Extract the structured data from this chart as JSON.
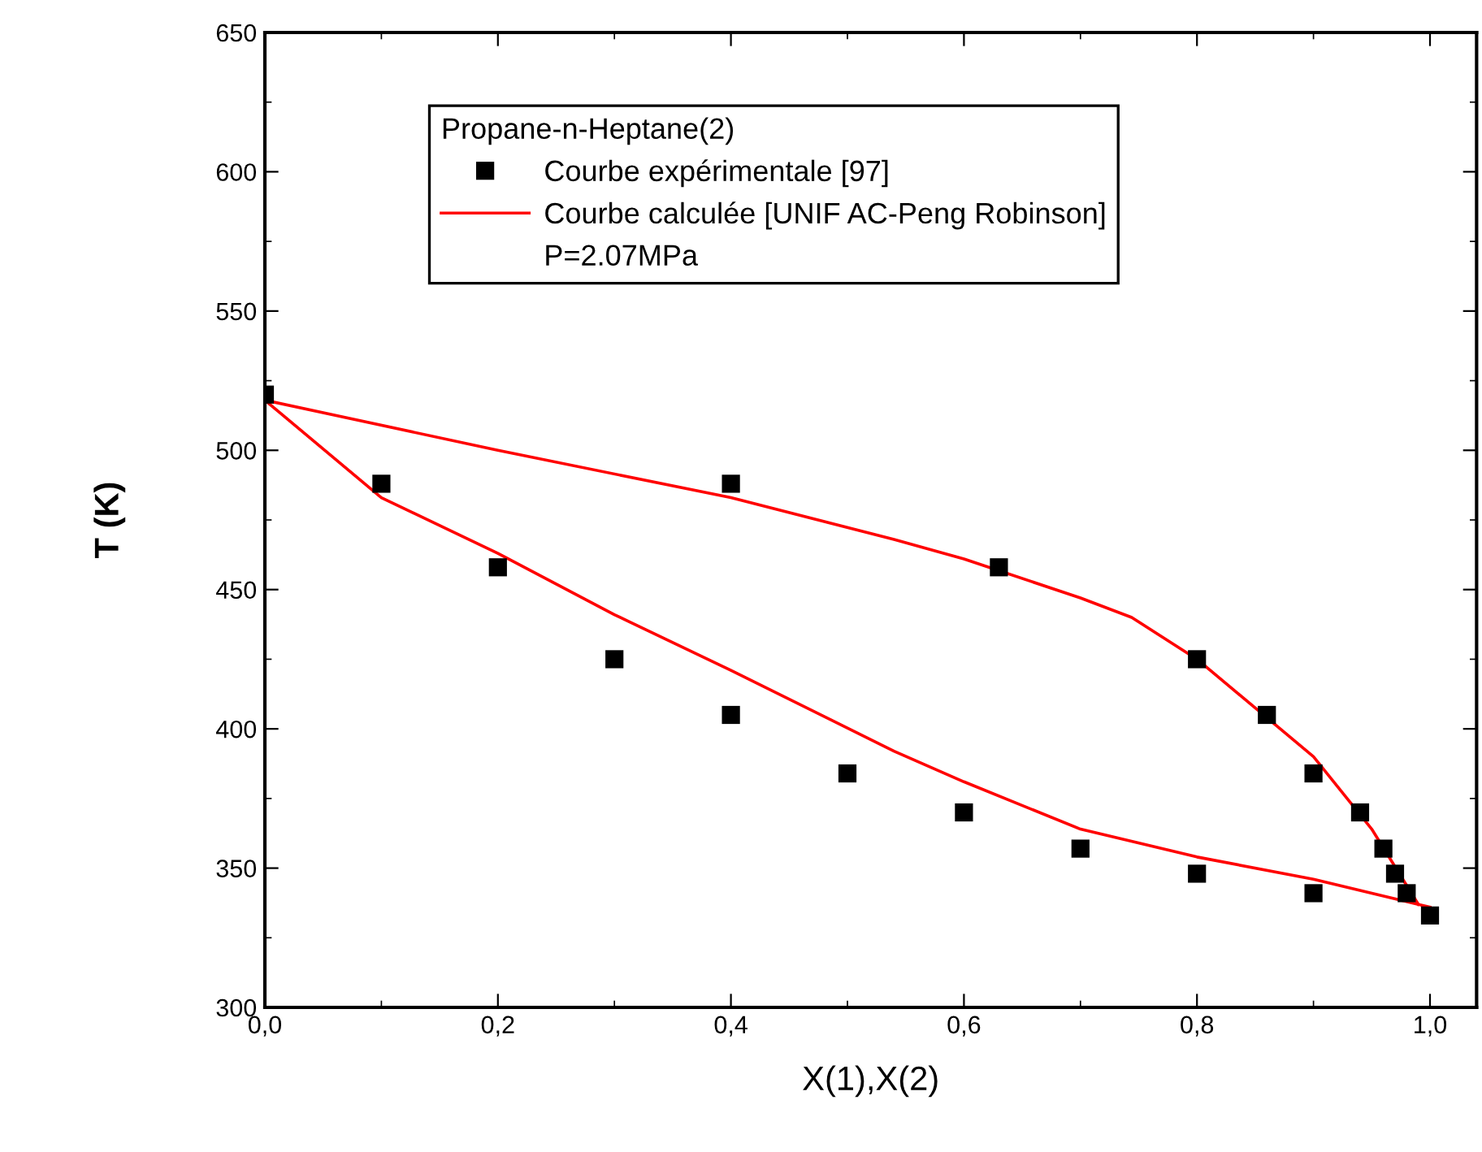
{
  "chart_data": {
    "type": "scatter",
    "xlabel": "X(1),X(2)",
    "ylabel": "T (K)",
    "legend_title": "Propane-n-Heptane(2)",
    "legend": "top",
    "grid": false,
    "annotations": [
      "P=2.07MPa"
    ],
    "xlim": [
      0,
      1.04
    ],
    "ylim": [
      300,
      650
    ],
    "xticks": [
      {
        "value": 0,
        "label": "0,0"
      },
      {
        "value": 0.2,
        "label": "0,2"
      },
      {
        "value": 0.4,
        "label": "0,4"
      },
      {
        "value": 0.6,
        "label": "0,6"
      },
      {
        "value": 0.8,
        "label": "0,8"
      },
      {
        "value": 1.0,
        "label": "1,0"
      }
    ],
    "yticks": [
      300,
      350,
      400,
      450,
      500,
      550,
      600,
      650
    ],
    "series": [
      {
        "name": "Courbe expérimentale [97]",
        "marker": "square",
        "color": "#000000",
        "x": [
          0,
          0.1,
          0.2,
          0.3,
          0.4,
          0.5,
          0.6,
          0.7,
          0.8,
          0.9,
          1.0,
          0.4,
          0.63,
          0.8,
          0.86,
          0.9,
          0.94,
          0.96,
          0.97,
          0.98
        ],
        "values": [
          520,
          488,
          458,
          425,
          405,
          384,
          370,
          357,
          348,
          341,
          333,
          488,
          458,
          425,
          405,
          384,
          370,
          357,
          348,
          341
        ]
      },
      {
        "name": "Courbe calculée [UNIF AC-Peng Robinson]",
        "type": "line",
        "marker": "none",
        "line_style": "solid",
        "color": "#ff0000",
        "x": [
          0,
          0.1,
          0.2,
          0.3,
          0.4,
          0.54,
          0.6,
          0.7,
          0.8,
          0.9,
          0.99,
          1.0
        ],
        "values": [
          518,
          483,
          463,
          441,
          421,
          392,
          381,
          364,
          354,
          346,
          337,
          336
        ]
      },
      {
        "type": "line",
        "marker": "none",
        "line_style": "solid",
        "color": "#ff0000",
        "x": [
          0,
          0.2,
          0.4,
          0.54,
          0.6,
          0.7,
          0.744,
          0.8,
          0.9,
          0.95,
          0.99
        ],
        "values": [
          518,
          500,
          483,
          468,
          461,
          447,
          440,
          425,
          390,
          364,
          337
        ]
      }
    ]
  }
}
